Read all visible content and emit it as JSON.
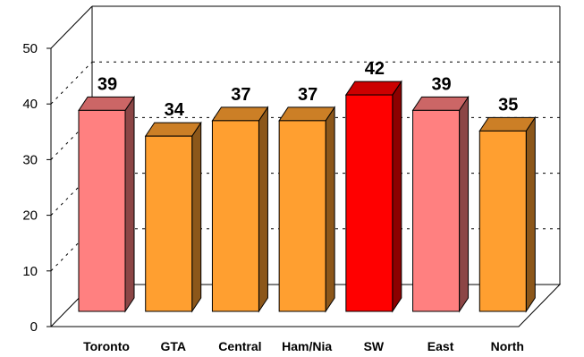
{
  "chart_data": {
    "type": "bar",
    "categories": [
      "Toronto",
      "GTA",
      "Central",
      "Ham/Nia",
      "SW",
      "East",
      "North"
    ],
    "values": [
      39,
      34,
      37,
      37,
      42,
      39,
      35
    ],
    "data_labels": [
      "39",
      "34",
      "37",
      "37",
      "42",
      "39",
      "35"
    ],
    "bar_colors": [
      "#FF8080",
      "#FF9F30",
      "#FF9F30",
      "#FF9F30",
      "#FF0000",
      "#FF8080",
      "#FF9F30"
    ],
    "ylim": [
      0,
      50
    ],
    "yticks": [
      "0",
      "10",
      "20",
      "30",
      "40",
      "50"
    ],
    "grid": true,
    "grid_style": "dashed",
    "three_d": true,
    "legend": "none"
  }
}
